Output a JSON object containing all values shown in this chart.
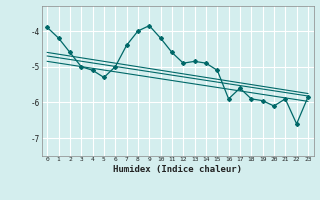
{
  "xlabel": "Humidex (Indice chaleur)",
  "ylabel": "",
  "bg_color": "#d4eeee",
  "line_color": "#006868",
  "grid_color": "#b8d8d8",
  "xlim": [
    -0.5,
    23.5
  ],
  "ylim": [
    -7.5,
    -3.3
  ],
  "yticks": [
    -7,
    -6,
    -5,
    -4
  ],
  "xticks": [
    0,
    1,
    2,
    3,
    4,
    5,
    6,
    7,
    8,
    9,
    10,
    11,
    12,
    13,
    14,
    15,
    16,
    17,
    18,
    19,
    20,
    21,
    22,
    23
  ],
  "main_x": [
    0,
    1,
    2,
    3,
    4,
    5,
    6,
    7,
    8,
    9,
    10,
    11,
    12,
    13,
    14,
    15,
    16,
    17,
    18,
    19,
    20,
    21,
    22,
    23
  ],
  "main_y": [
    -3.9,
    -4.2,
    -4.6,
    -5.0,
    -5.1,
    -5.3,
    -5.0,
    -4.4,
    -4.0,
    -3.85,
    -4.2,
    -4.6,
    -4.9,
    -4.85,
    -4.9,
    -5.1,
    -5.9,
    -5.6,
    -5.9,
    -5.95,
    -6.1,
    -5.9,
    -6.6,
    -5.85
  ],
  "trend1_x": [
    0,
    23
  ],
  "trend1_y": [
    -4.6,
    -5.75
  ],
  "trend2_x": [
    0,
    23
  ],
  "trend2_y": [
    -4.7,
    -5.82
  ],
  "trend3_x": [
    0,
    23
  ],
  "trend3_y": [
    -4.85,
    -5.97
  ]
}
